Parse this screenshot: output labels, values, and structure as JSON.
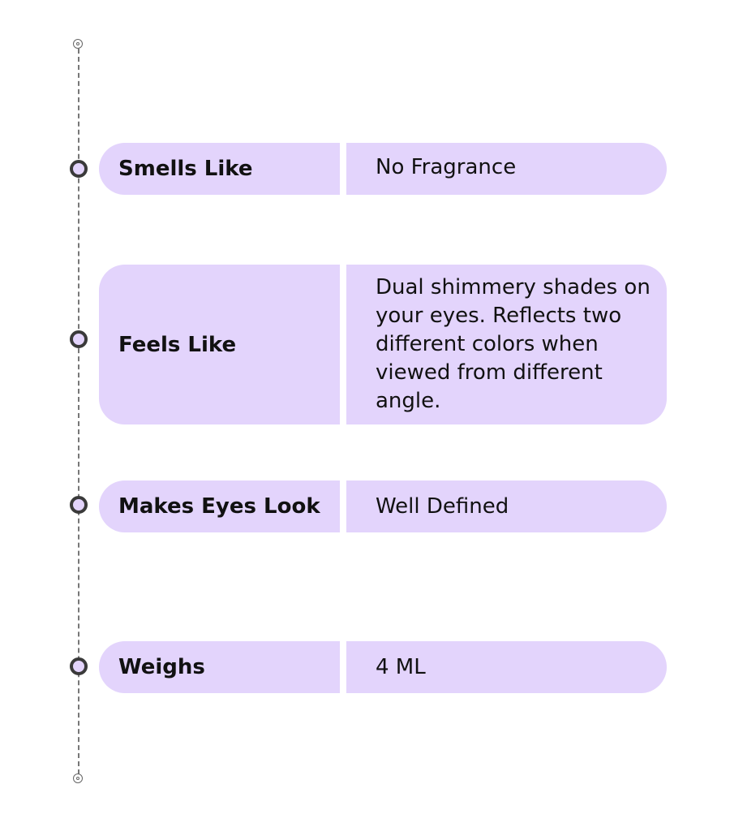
{
  "colors": {
    "box": "#e3d4fc",
    "node": "#3a3a3a",
    "line": "#777777"
  },
  "rows": [
    {
      "label": "Smells Like",
      "value": "No Fragrance"
    },
    {
      "label": "Feels Like",
      "value": "Dual shimmery shades on your eyes. Reflects two different colors when viewed from different angle."
    },
    {
      "label": "Makes Eyes Look",
      "value": "Well Defined"
    },
    {
      "label": "Weighs",
      "value": "4 ML"
    }
  ]
}
